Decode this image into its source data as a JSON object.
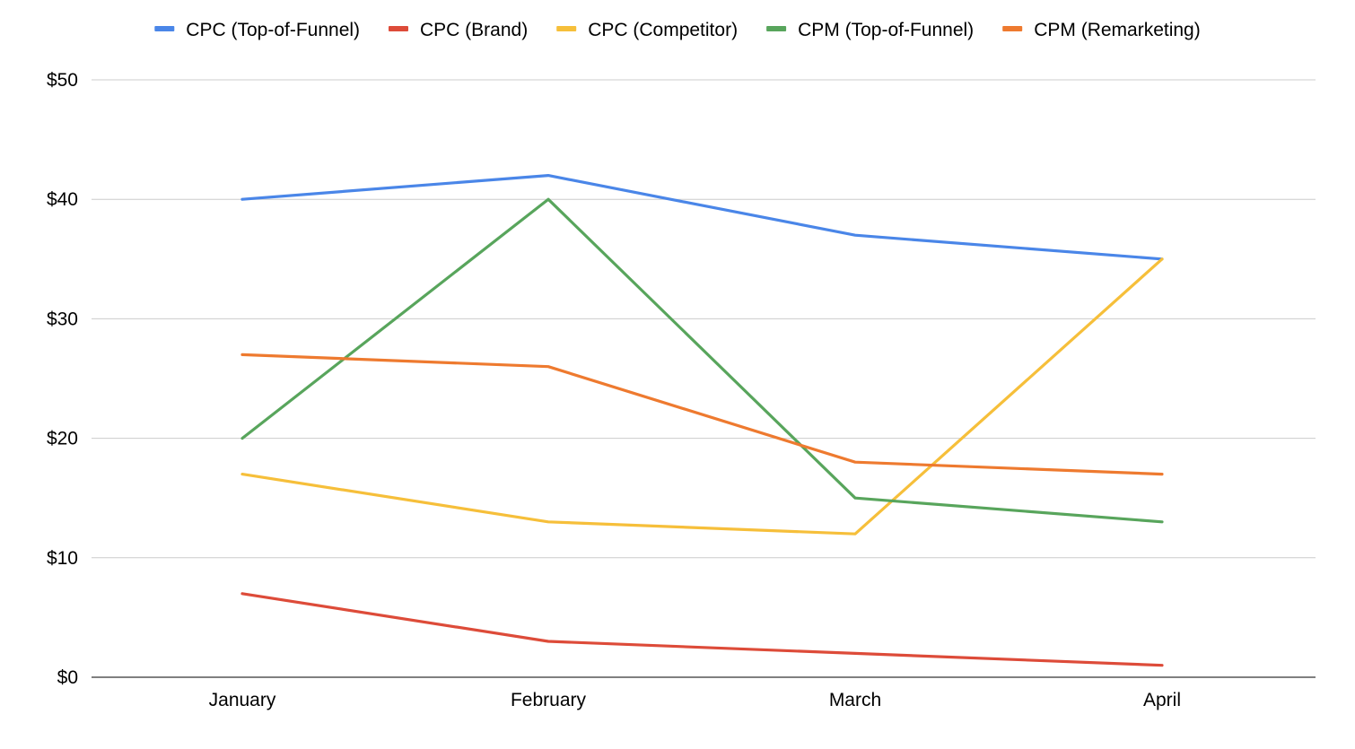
{
  "chart_data": {
    "type": "line",
    "title": "",
    "xlabel": "",
    "ylabel": "",
    "categories": [
      "January",
      "February",
      "March",
      "April"
    ],
    "y_tick_labels": [
      "$0",
      "$10",
      "$20",
      "$30",
      "$40",
      "$50"
    ],
    "ylim": [
      0,
      50
    ],
    "grid": true,
    "legend_position": "top",
    "series": [
      {
        "name": "CPC (Top-of-Funnel)",
        "color": "#4a86e8",
        "values": [
          40,
          42,
          37,
          35
        ]
      },
      {
        "name": "CPC (Brand)",
        "color": "#dd4b39",
        "values": [
          7,
          3,
          2,
          1
        ]
      },
      {
        "name": "CPC (Competitor)",
        "color": "#f6bf3a",
        "values": [
          17,
          13,
          12,
          35
        ]
      },
      {
        "name": "CPM (Top-of-Funnel)",
        "color": "#58a55c",
        "values": [
          20,
          40,
          15,
          13
        ]
      },
      {
        "name": "CPM (Remarketing)",
        "color": "#ee7a2f",
        "values": [
          27,
          26,
          18,
          17
        ]
      }
    ]
  }
}
